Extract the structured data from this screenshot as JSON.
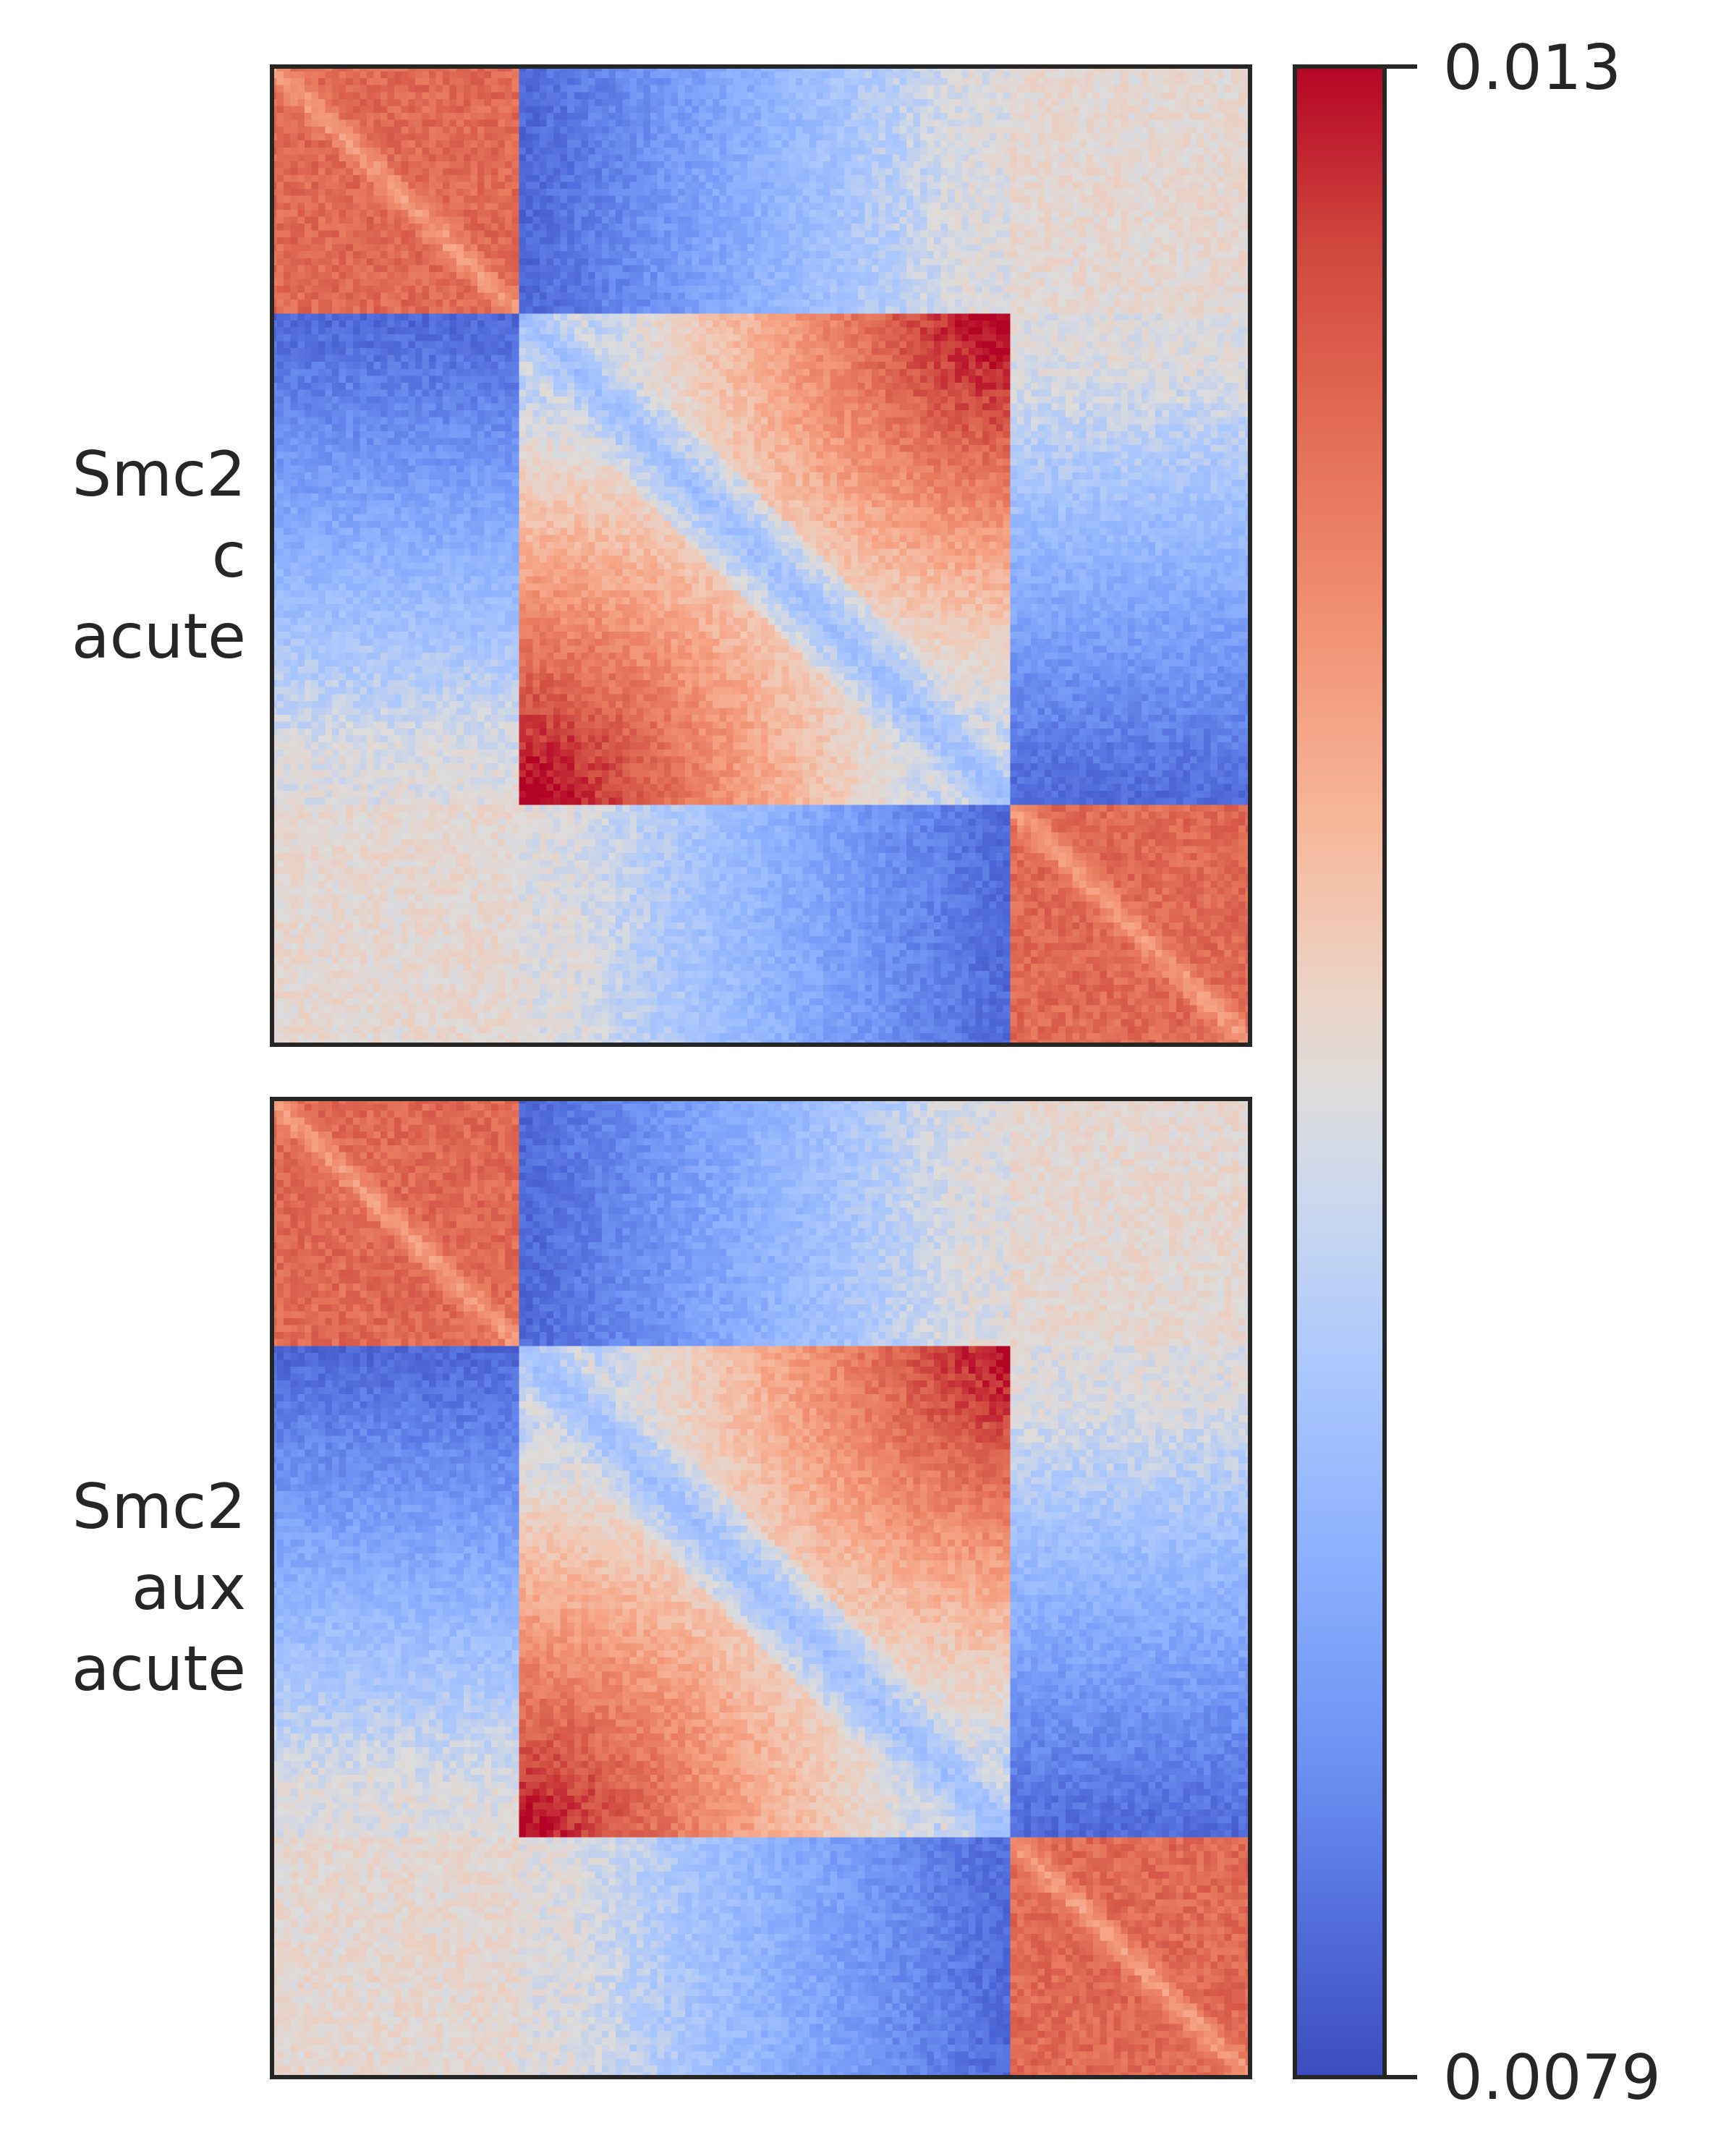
{
  "chart_data": [
    {
      "type": "heatmap",
      "row_label": [
        "Smc2",
        "c",
        "acute"
      ],
      "grid": "off",
      "pattern": "two-domain contact map with strong corner domains and off-diagonal enrichment triangles",
      "colormap": "coolwarm",
      "vmin": 0.0079,
      "vmax": 0.013
    },
    {
      "type": "heatmap",
      "row_label": [
        "Smc2",
        "aux",
        "acute"
      ],
      "grid": "off",
      "pattern": "two-domain contact map with strong corner domains and off-diagonal enrichment triangles",
      "colormap": "coolwarm",
      "vmin": 0.0079,
      "vmax": 0.013
    }
  ],
  "colorbar": {
    "max_label": "0.013",
    "min_label": "0.0079",
    "colors": [
      "#3b4cc0",
      "#dddcdc",
      "#b40426"
    ],
    "orientation": "vertical"
  }
}
